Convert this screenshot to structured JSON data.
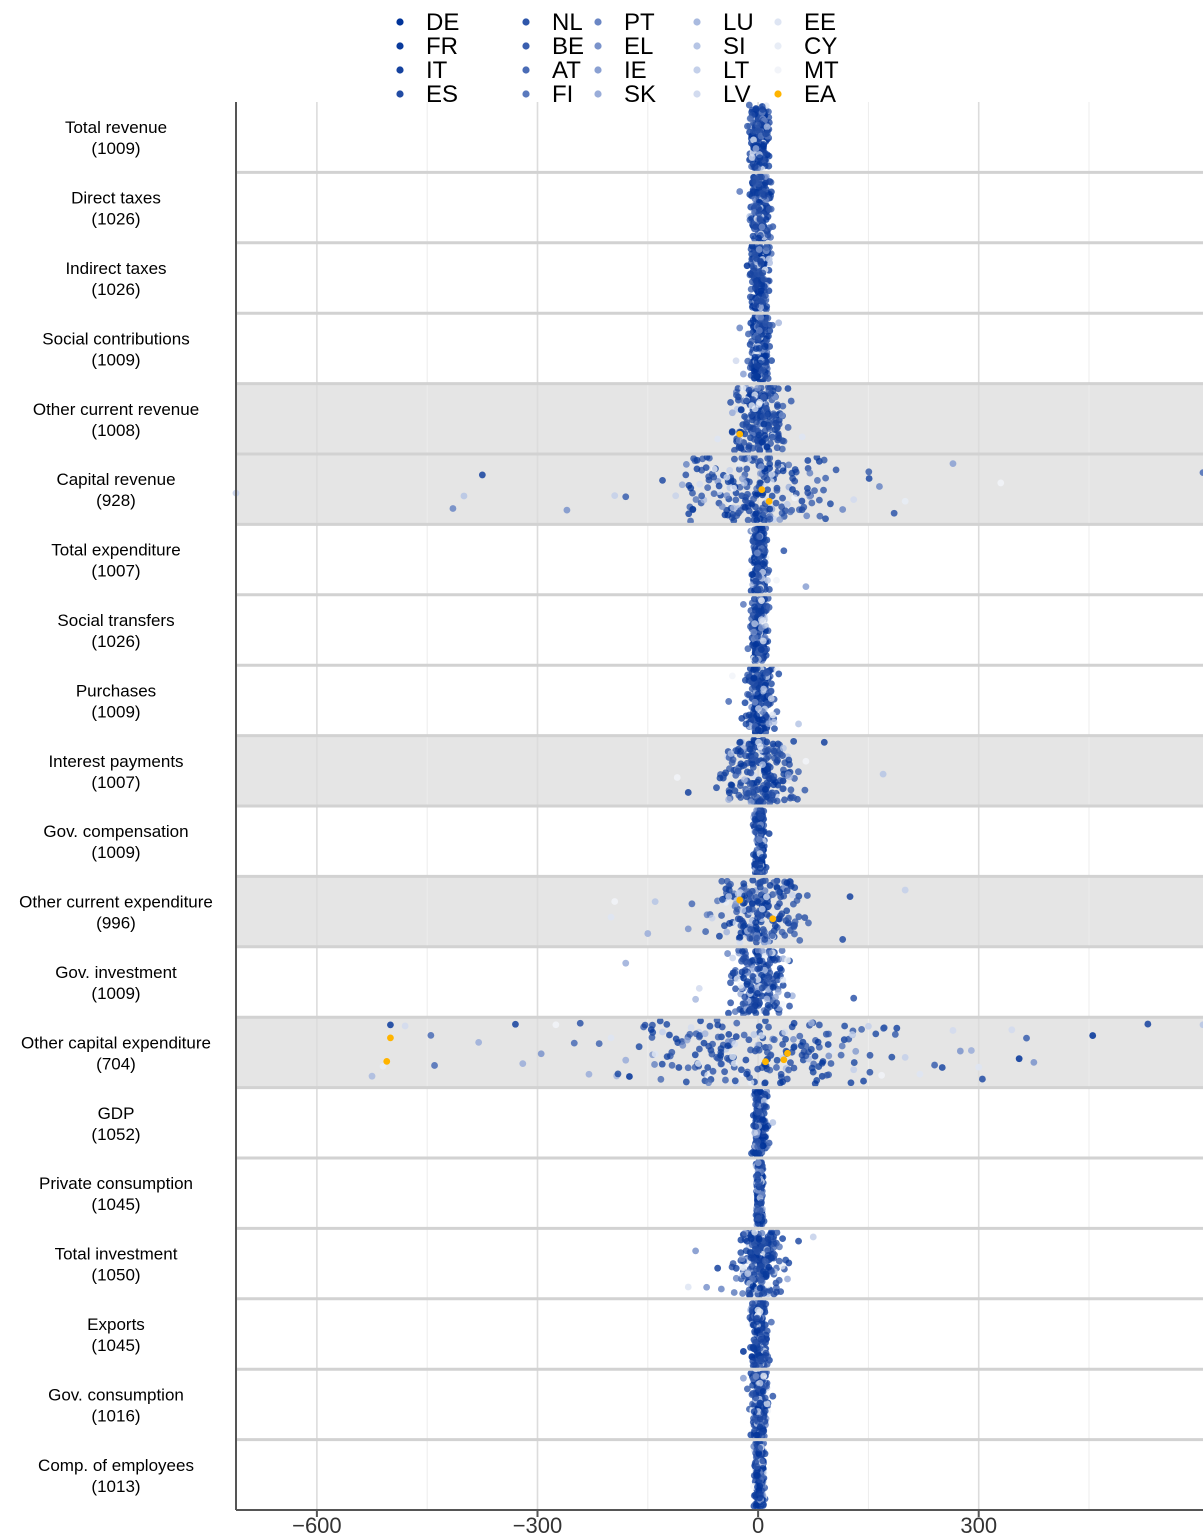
{
  "chart_data": {
    "type": "scatter",
    "title": "",
    "xlabel": "",
    "ylabel": "",
    "xlim": [
      -710,
      605
    ],
    "x_ticks": [
      {
        "value": -600,
        "label": "−600"
      },
      {
        "value": -300,
        "label": "−300"
      },
      {
        "value": 0,
        "label": "0"
      },
      {
        "value": 300,
        "label": "300"
      }
    ],
    "x_minor_gridlines": [
      -450,
      -150,
      150,
      450
    ],
    "grid": true,
    "legend": {
      "placement": "top",
      "columns": [
        [
          {
            "label": "DE",
            "color": "#003399"
          },
          {
            "label": "FR",
            "color": "#0a3b9c"
          },
          {
            "label": "IT",
            "color": "#15429f"
          },
          {
            "label": "ES",
            "color": "#224ca4"
          }
        ],
        [
          {
            "label": "NL",
            "color": "#2e56aa"
          },
          {
            "label": "BE",
            "color": "#3a5faf"
          },
          {
            "label": "AT",
            "color": "#4a6cb6"
          },
          {
            "label": "FI",
            "color": "#5a79bd"
          }
        ],
        [
          {
            "label": "PT",
            "color": "#6a86c4"
          },
          {
            "label": "EL",
            "color": "#7a93cb"
          },
          {
            "label": "IE",
            "color": "#8aa0d2"
          },
          {
            "label": "SK",
            "color": "#9aadd9"
          }
        ],
        [
          {
            "label": "LU",
            "color": "#a9badf"
          },
          {
            "label": "SI",
            "color": "#b6c5e5"
          },
          {
            "label": "LT",
            "color": "#c4d0ea"
          },
          {
            "label": "LV",
            "color": "#d2dbef"
          }
        ],
        [
          {
            "label": "EE",
            "color": "#dee5f3"
          },
          {
            "label": "CY",
            "color": "#e8edf6"
          },
          {
            "label": "MT",
            "color": "#f2f4f9"
          },
          {
            "label": "EA",
            "color": "#ffb400"
          }
        ]
      ]
    },
    "rows": [
      {
        "name": "Total revenue",
        "count": "(1009)",
        "shaded": false,
        "spread": 18,
        "outliers": []
      },
      {
        "name": "Direct taxes",
        "count": "(1026)",
        "shaded": false,
        "spread": 20,
        "outliers": [
          -25,
          20
        ]
      },
      {
        "name": "Indirect taxes",
        "count": "(1026)",
        "shaded": false,
        "spread": 18,
        "outliers": [
          -15,
          15
        ]
      },
      {
        "name": "Social contributions",
        "count": "(1009)",
        "shaded": false,
        "spread": 18,
        "outliers": [
          -30,
          -25,
          -20,
          28
        ]
      },
      {
        "name": "Other current revenue",
        "count": "(1008)",
        "shaded": true,
        "spread": 45,
        "outliers": [
          -55,
          -35,
          45,
          60
        ],
        "ea": [
          -25
        ]
      },
      {
        "name": "Capital revenue",
        "count": "(928)",
        "shaded": true,
        "spread": 150,
        "outliers": [
          -710,
          -415,
          -400,
          -375,
          -260,
          -195,
          -180,
          -130,
          115,
          130,
          165,
          185,
          200,
          265,
          330,
          605
        ],
        "ea": [
          5,
          15
        ]
      },
      {
        "name": "Total expenditure",
        "count": "(1007)",
        "shaded": false,
        "spread": 15,
        "outliers": [
          25,
          35,
          65
        ]
      },
      {
        "name": "Social transfers",
        "count": "(1026)",
        "shaded": false,
        "spread": 15,
        "outliers": [
          -20,
          15
        ]
      },
      {
        "name": "Purchases",
        "count": "(1009)",
        "shaded": false,
        "spread": 25,
        "outliers": [
          -40,
          -35,
          20,
          55
        ]
      },
      {
        "name": "Interest payments",
        "count": "(1007)",
        "shaded": true,
        "spread": 70,
        "outliers": [
          -110,
          -95,
          65,
          90,
          170
        ]
      },
      {
        "name": "Gov. compensation",
        "count": "(1009)",
        "shaded": false,
        "spread": 10,
        "outliers": [
          15
        ]
      },
      {
        "name": "Other current expenditure",
        "count": "(996)",
        "shaded": true,
        "spread": 85,
        "outliers": [
          -200,
          -195,
          -150,
          -140,
          -95,
          -90,
          115,
          125,
          200
        ],
        "ea": [
          -25,
          20
        ]
      },
      {
        "name": "Gov. investment",
        "count": "(1009)",
        "shaded": false,
        "spread": 55,
        "outliers": [
          -180,
          -85,
          -80,
          40,
          130
        ]
      },
      {
        "name": "Other capital expenditure",
        "count": "(704)",
        "shaded": true,
        "spread": 260,
        "outliers": [
          -525,
          -510,
          -500,
          -480,
          -445,
          -440,
          -380,
          -330,
          -320,
          -295,
          -275,
          -250,
          -230,
          -200,
          -180,
          -175,
          -140,
          -130,
          130,
          150,
          200,
          220,
          240,
          265,
          275,
          290,
          300,
          305,
          345,
          355,
          365,
          375,
          455,
          530,
          605
        ],
        "ea": [
          -500,
          -505,
          35,
          40,
          10
        ]
      },
      {
        "name": "GDP",
        "count": "(1052)",
        "shaded": false,
        "spread": 12,
        "outliers": [
          15,
          20
        ]
      },
      {
        "name": "Private consumption",
        "count": "(1045)",
        "shaded": false,
        "spread": 6,
        "outliers": []
      },
      {
        "name": "Total investment",
        "count": "(1050)",
        "shaded": false,
        "spread": 45,
        "outliers": [
          -95,
          -85,
          -70,
          -55,
          -50,
          40,
          55,
          75
        ]
      },
      {
        "name": "Exports",
        "count": "(1045)",
        "shaded": false,
        "spread": 15,
        "outliers": [
          -20,
          18
        ]
      },
      {
        "name": "Gov. consumption",
        "count": "(1016)",
        "shaded": false,
        "spread": 15,
        "outliers": [
          -20,
          20
        ]
      },
      {
        "name": "Comp. of employees",
        "count": "(1013)",
        "shaded": false,
        "spread": 10,
        "outliers": []
      }
    ]
  }
}
